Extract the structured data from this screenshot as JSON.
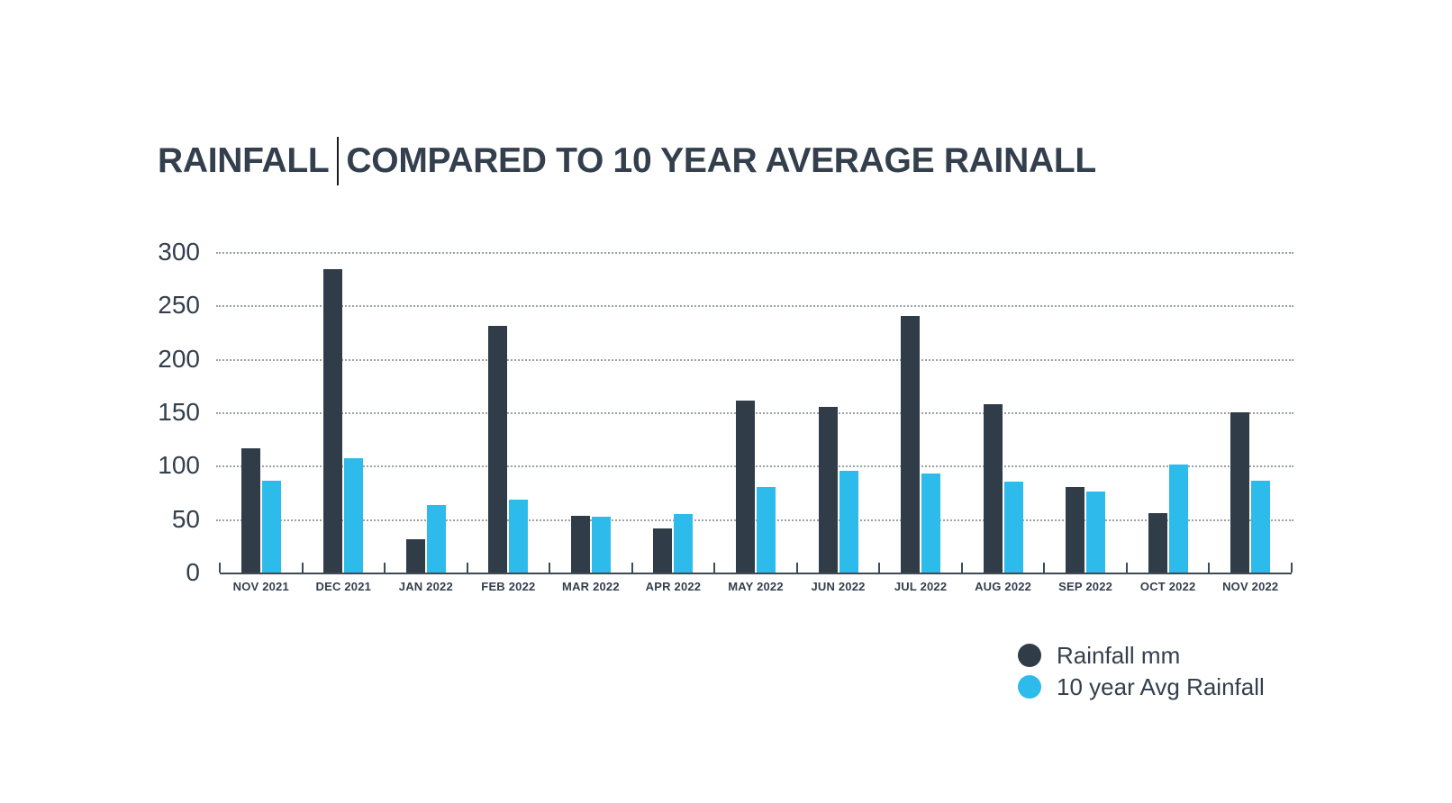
{
  "title": {
    "before_cursor": "RAINFALL",
    "after_cursor": "COMPARED TO 10 YEAR AVERAGE RAINALL"
  },
  "colors": {
    "rainfall_bar": "#303C48",
    "avg_bar": "#2CBBEB",
    "text": "#333F4D",
    "gridline": "#9BA1A6",
    "axis": "#3F4A54"
  },
  "chart_data": {
    "type": "bar",
    "title": "RAINFALL COMPARED TO 10 YEAR AVERAGE RAINALL",
    "categories": [
      "NOV 2021",
      "DEC 2021",
      "JAN 2022",
      "FEB 2022",
      "MAR 2022",
      "APR 2022",
      "MAY 2022",
      "JUN 2022",
      "JUL 2022",
      "AUG 2022",
      "SEP 2022",
      "OCT 2022",
      "NOV 2022"
    ],
    "series": [
      {
        "name": "Rainfall mm",
        "color": "#303C48",
        "values": [
          116,
          284,
          31,
          231,
          53,
          41,
          161,
          155,
          240,
          158,
          80,
          56,
          150
        ]
      },
      {
        "name": "10 year Avg Rainfall",
        "color": "#2CBBEB",
        "values": [
          86,
          107,
          63,
          68,
          52,
          55,
          80,
          95,
          93,
          85,
          76,
          101,
          86
        ]
      }
    ],
    "xlabel": "",
    "ylabel": "",
    "ylim": [
      0,
      300
    ],
    "y_ticks": [
      300,
      250,
      200,
      150,
      100,
      50,
      0
    ],
    "grid": "horizontal-dotted",
    "legend_position": "bottom-right"
  }
}
